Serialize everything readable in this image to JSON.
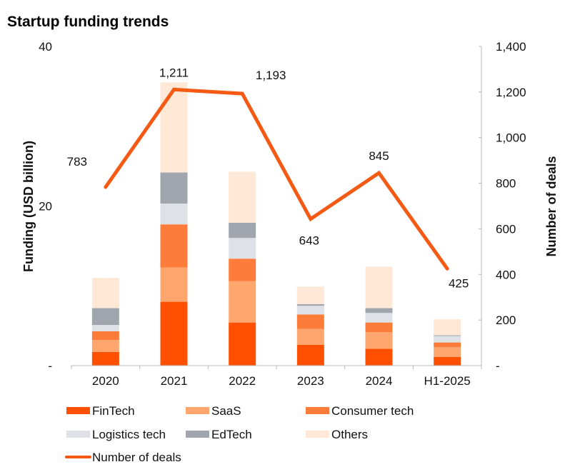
{
  "chart_data": {
    "type": "bar",
    "stacked": true,
    "title": "Startup funding trends",
    "categories": [
      "2020",
      "2021",
      "2022",
      "2023",
      "2024",
      "H1-2025"
    ],
    "ylabel": "Funding (USD billion)",
    "y2label": "Number of deals",
    "ylim": [
      0,
      40
    ],
    "y2lim": [
      0,
      1400
    ],
    "yticks": [
      {
        "value": 0,
        "label": "-"
      },
      {
        "value": 20,
        "label": "20"
      },
      {
        "value": 40,
        "label": "40"
      }
    ],
    "y2ticks": [
      {
        "value": 0,
        "label": "-"
      },
      {
        "value": 200,
        "label": "200"
      },
      {
        "value": 400,
        "label": "400"
      },
      {
        "value": 600,
        "label": "600"
      },
      {
        "value": 800,
        "label": "800"
      },
      {
        "value": 1000,
        "label": "1,000"
      },
      {
        "value": 1200,
        "label": "1,200"
      },
      {
        "value": 1400,
        "label": "1,400"
      }
    ],
    "grid": false,
    "legend_position": "bottom",
    "series": [
      {
        "name": "FinTech",
        "color": "#FE5000",
        "values": [
          1.7,
          8.0,
          5.4,
          2.6,
          2.1,
          1.1
        ]
      },
      {
        "name": "SaaS",
        "color": "#FFA66F",
        "values": [
          1.5,
          4.3,
          5.2,
          2.0,
          2.1,
          1.2
        ]
      },
      {
        "name": "Consumer tech",
        "color": "#FE7C39",
        "values": [
          1.1,
          5.4,
          2.8,
          1.8,
          1.2,
          0.6
        ]
      },
      {
        "name": "Logistics tech",
        "color": "#DEE1E5",
        "values": [
          0.8,
          2.6,
          2.6,
          1.1,
          1.2,
          0.8
        ]
      },
      {
        "name": "EdTech",
        "color": "#A0A5AE",
        "values": [
          2.1,
          3.9,
          1.9,
          0.2,
          0.6,
          0.1
        ]
      },
      {
        "name": "Others",
        "color": "#FFE8D6",
        "values": [
          3.8,
          11.3,
          6.4,
          2.2,
          5.2,
          2.0
        ]
      }
    ],
    "line_series": {
      "name": "Number of deals",
      "color": "#F45A14",
      "axis": "right",
      "values": [
        783,
        1211,
        1193,
        643,
        845,
        425
      ],
      "labels": [
        "783",
        "1,211",
        "1,193",
        "643",
        "845",
        "425"
      ]
    }
  }
}
